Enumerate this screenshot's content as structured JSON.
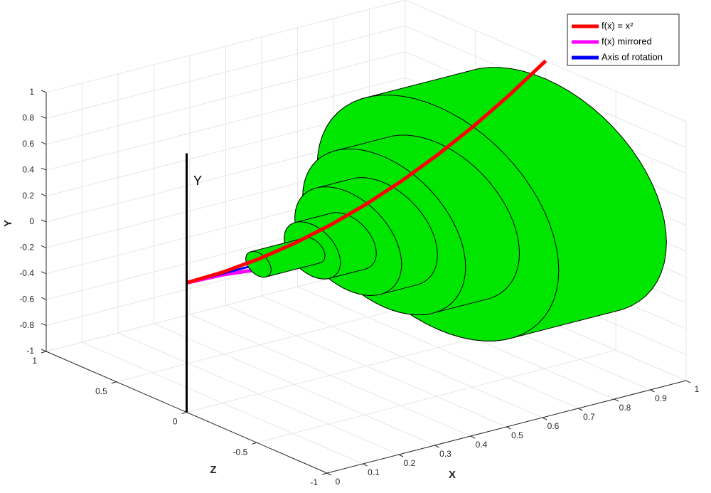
{
  "chart_data": {
    "type": "solid-of-revolution-3d",
    "xlabel": "X",
    "ylabel": "Y",
    "zlabel": "Z",
    "annotation": "Y",
    "xlim": [
      0,
      1
    ],
    "ylim": [
      -1,
      1
    ],
    "zlim": [
      -1,
      1
    ],
    "xticks": [
      0,
      0.1,
      0.2,
      0.3,
      0.4,
      0.5,
      0.6,
      0.7,
      0.8,
      0.9,
      1
    ],
    "yticks": [
      -1,
      -0.8,
      -0.6,
      -0.4,
      -0.2,
      0,
      0.2,
      0.4,
      0.6,
      0.8,
      1
    ],
    "zticks": [
      -1,
      -0.5,
      0,
      0.5,
      1
    ],
    "grid": true,
    "legend_position": "northeast",
    "x": [
      0,
      0.1,
      0.2,
      0.3,
      0.4,
      0.5,
      0.6,
      0.7,
      0.8,
      0.9,
      1
    ],
    "series": [
      {
        "name": "f(x) = x²",
        "color": "#ff0000",
        "values": [
          0,
          0.01,
          0.04,
          0.09,
          0.16,
          0.25,
          0.36,
          0.49,
          0.64,
          0.81,
          1
        ]
      },
      {
        "name": "f(x) mirrored",
        "color": "#ff00ff",
        "values": [
          0,
          -0.01,
          -0.04,
          -0.09,
          -0.16,
          -0.25,
          -0.36,
          -0.49,
          -0.64,
          -0.81,
          -1
        ]
      },
      {
        "name": "Axis of rotation",
        "color": "#0000ff",
        "values": [
          0,
          0,
          0,
          0,
          0,
          0,
          0,
          0,
          0,
          0,
          0
        ]
      }
    ],
    "solid": {
      "color": "#00e600",
      "segments": [
        {
          "x0": 0.2,
          "x1": 0.35,
          "radius": 0.09
        },
        {
          "x0": 0.35,
          "x1": 0.45,
          "radius": 0.2
        },
        {
          "x0": 0.45,
          "x1": 0.55,
          "radius": 0.38
        },
        {
          "x0": 0.55,
          "x1": 0.7,
          "radius": 0.58
        },
        {
          "x0": 0.7,
          "x1": 1,
          "radius": 0.86
        }
      ]
    }
  }
}
